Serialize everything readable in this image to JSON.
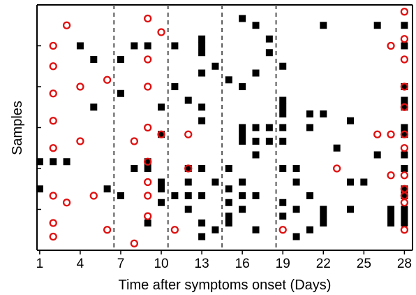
{
  "chart_data": {
    "type": "scatter",
    "xlabel": "Time after symptoms onset (Days)",
    "ylabel": "Samples",
    "x_ticks": [
      1,
      4,
      7,
      10,
      13,
      16,
      19,
      22,
      25,
      28
    ],
    "xlim": [
      0.8,
      28.6
    ],
    "ylim": [
      0,
      36
    ],
    "y_tick_values": [
      6,
      12,
      18,
      24,
      30
    ],
    "dividers_x": [
      6.5,
      10.5,
      14.5,
      18.5
    ],
    "colors": {
      "positive": "#000000",
      "negative": "#e01010",
      "divider": "#555555"
    },
    "marker_encoding": {
      "square": "black filled square",
      "circle": "red open circle"
    },
    "series": [
      {
        "marker": "square",
        "points": [
          [
            16,
            34
          ],
          [
            17,
            33
          ],
          [
            22,
            33
          ],
          [
            26,
            33
          ],
          [
            28,
            33
          ],
          [
            13,
            31
          ],
          [
            18,
            31
          ],
          [
            4,
            30
          ],
          [
            8,
            30
          ],
          [
            9,
            30
          ],
          [
            11,
            30
          ],
          [
            13,
            30
          ],
          [
            28,
            30
          ],
          [
            5,
            28
          ],
          [
            7,
            28
          ],
          [
            13,
            29
          ],
          [
            18,
            29
          ],
          [
            14,
            27
          ],
          [
            19,
            27
          ],
          [
            13,
            26
          ],
          [
            15,
            25
          ],
          [
            17,
            26
          ],
          [
            7,
            23
          ],
          [
            11,
            24
          ],
          [
            16,
            24
          ],
          [
            28,
            24
          ],
          [
            12,
            22
          ],
          [
            19,
            22
          ],
          [
            28,
            22
          ],
          [
            5,
            21
          ],
          [
            10,
            21
          ],
          [
            13,
            21
          ],
          [
            19,
            21
          ],
          [
            28,
            21
          ],
          [
            19,
            20
          ],
          [
            21,
            20
          ],
          [
            22,
            20
          ],
          [
            13,
            19
          ],
          [
            24,
            19
          ],
          [
            16,
            18
          ],
          [
            17,
            18
          ],
          [
            18,
            18
          ],
          [
            19,
            18
          ],
          [
            21,
            18
          ],
          [
            28,
            18
          ],
          [
            10,
            17
          ],
          [
            16,
            17
          ],
          [
            28,
            17
          ],
          [
            16,
            16
          ],
          [
            17,
            16
          ],
          [
            18,
            16
          ],
          [
            19,
            16
          ],
          [
            23,
            15
          ],
          [
            8,
            12
          ],
          [
            9,
            12
          ],
          [
            12,
            12
          ],
          [
            13,
            12
          ],
          [
            15,
            12
          ],
          [
            19,
            12
          ],
          [
            10,
            10
          ],
          [
            12,
            10
          ],
          [
            14,
            10
          ],
          [
            16,
            10
          ],
          [
            20,
            10
          ],
          [
            25,
            10
          ],
          [
            1,
            9
          ],
          [
            6,
            9
          ],
          [
            10,
            9
          ],
          [
            15,
            9
          ],
          [
            28,
            9
          ],
          [
            3,
            13
          ],
          [
            17,
            14
          ],
          [
            26,
            14
          ],
          [
            28,
            14
          ],
          [
            20,
            12
          ],
          [
            28,
            12
          ],
          [
            7,
            8
          ],
          [
            11,
            8
          ],
          [
            12,
            8
          ],
          [
            13,
            8
          ],
          [
            16,
            8
          ],
          [
            17,
            8
          ],
          [
            21,
            8
          ],
          [
            28,
            8
          ],
          [
            10,
            7
          ],
          [
            15,
            7
          ],
          [
            19,
            7
          ],
          [
            12,
            6
          ],
          [
            16,
            6
          ],
          [
            20,
            6
          ],
          [
            22,
            6
          ],
          [
            24,
            6
          ],
          [
            27,
            6
          ],
          [
            28,
            6
          ],
          [
            15,
            5
          ],
          [
            19,
            5
          ],
          [
            22,
            5
          ],
          [
            27,
            5
          ],
          [
            28,
            5
          ],
          [
            9,
            4
          ],
          [
            13,
            4
          ],
          [
            15,
            4
          ],
          [
            22,
            4
          ],
          [
            27,
            4
          ],
          [
            28,
            4
          ],
          [
            14,
            3
          ],
          [
            17,
            3
          ],
          [
            21,
            3
          ],
          [
            1,
            13
          ],
          [
            2,
            13
          ],
          [
            9,
            13
          ],
          [
            13,
            2
          ],
          [
            20,
            2
          ],
          [
            24,
            10
          ]
        ]
      },
      {
        "marker": "circle",
        "points": [
          [
            28,
            35
          ],
          [
            9,
            34
          ],
          [
            3,
            33
          ],
          [
            10,
            32
          ],
          [
            2,
            30
          ],
          [
            27,
            30
          ],
          [
            28,
            31
          ],
          [
            9,
            28
          ],
          [
            2,
            27
          ],
          [
            28,
            28
          ],
          [
            6,
            25
          ],
          [
            4,
            24
          ],
          [
            9,
            24
          ],
          [
            28,
            24
          ],
          [
            2,
            23
          ],
          [
            28,
            21
          ],
          [
            2,
            19
          ],
          [
            9,
            18
          ],
          [
            10,
            17
          ],
          [
            12,
            17
          ],
          [
            26,
            17
          ],
          [
            27,
            17
          ],
          [
            28,
            17
          ],
          [
            4,
            16
          ],
          [
            8,
            16
          ],
          [
            2,
            15
          ],
          [
            28,
            15
          ],
          [
            9,
            13
          ],
          [
            12,
            12
          ],
          [
            23,
            12
          ],
          [
            27,
            11
          ],
          [
            28,
            11
          ],
          [
            9,
            10
          ],
          [
            28,
            9
          ],
          [
            2,
            8
          ],
          [
            5,
            8
          ],
          [
            9,
            8
          ],
          [
            28,
            8
          ],
          [
            3,
            7
          ],
          [
            28,
            7
          ],
          [
            9,
            5
          ],
          [
            2,
            4
          ],
          [
            28,
            3
          ],
          [
            6,
            3
          ],
          [
            11,
            3
          ],
          [
            19,
            3
          ],
          [
            2,
            2
          ],
          [
            8,
            1
          ]
        ]
      }
    ]
  }
}
